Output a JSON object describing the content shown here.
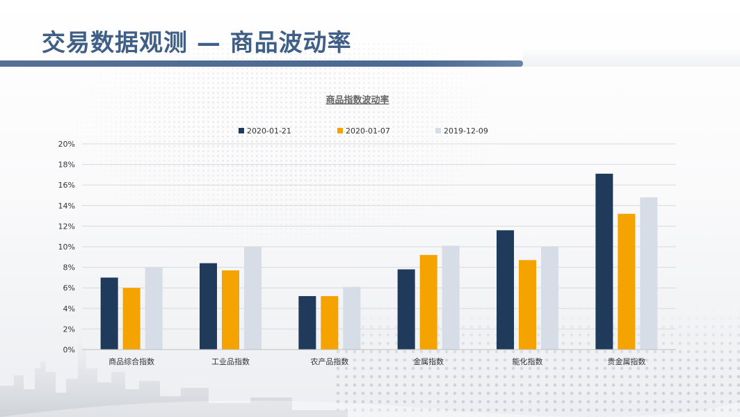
{
  "slide": {
    "title": "交易数据观测 — 商品波动率"
  },
  "chart_data": {
    "type": "bar",
    "title": "商品指数波动率",
    "categories": [
      "商品综合指数",
      "工业品指数",
      "农产品指数",
      "金属指数",
      "能化指数",
      "贵金属指数"
    ],
    "series": [
      {
        "name": "2020-01-21",
        "color": "#1f3a5a",
        "values": [
          7.0,
          8.4,
          5.2,
          7.8,
          11.6,
          17.1
        ]
      },
      {
        "name": "2020-01-07",
        "color": "#f5a300",
        "values": [
          6.0,
          7.7,
          5.2,
          9.2,
          8.7,
          13.2
        ]
      },
      {
        "name": "2019-12-09",
        "color": "#d6dde6",
        "values": [
          8.0,
          10.0,
          6.1,
          10.1,
          10.0,
          14.8
        ]
      }
    ],
    "ylim": [
      0,
      20
    ],
    "yticks": [
      0,
      2,
      4,
      6,
      8,
      10,
      12,
      14,
      16,
      18,
      20
    ],
    "ytick_labels": [
      "0%",
      "2%",
      "4%",
      "6%",
      "8%",
      "10%",
      "12%",
      "14%",
      "16%",
      "18%",
      "20%"
    ],
    "unit": "%",
    "grid": true,
    "legend_position": "top-center"
  }
}
